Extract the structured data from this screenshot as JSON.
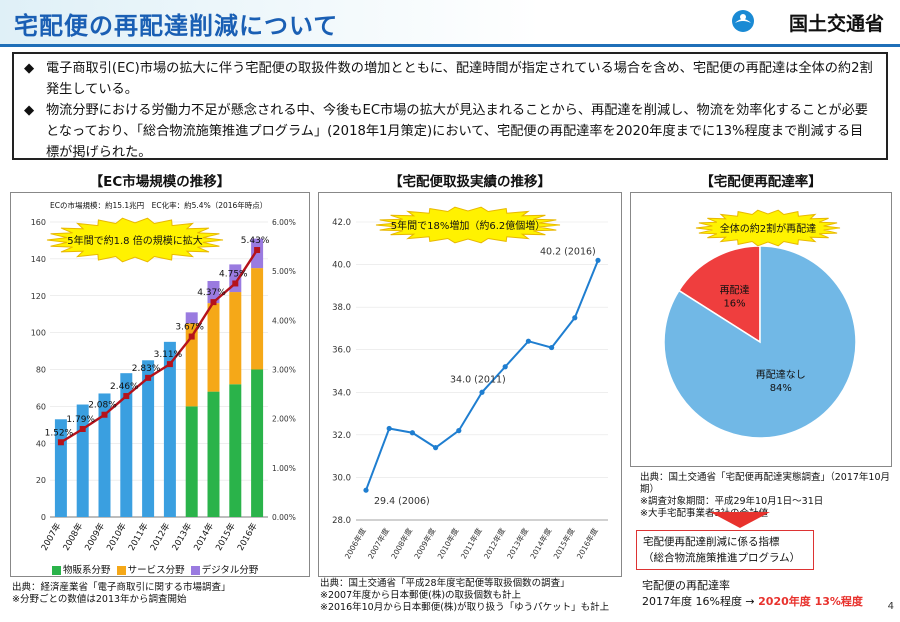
{
  "header": {
    "title": "宅配便の再配達削減について",
    "ministry": "国土交通省"
  },
  "summary": {
    "bullets": [
      "電子商取引(EC)市場の拡大に伴う宅配便の取扱件数の増加とともに、配達時間が指定されている場合を含め、宅配便の再配達は全体の約2割発生している。",
      "物流分野における労働力不足が懸念される中、今後もEC市場の拡大が見込まれることから、再配達を削減し、物流を効率化することが必要となっており、「総合物流施策推進プログラム」(2018年1月策定)において、宅配便の再配達率を2020年度までに13%程度まで削減する目標が掲げられた。"
    ],
    "bullet_mark": "◆"
  },
  "panels": {
    "ec": {
      "title": "【EC市場規模の推移】",
      "note": "ECの市場規模：約15.1兆円　EC化率：約5.4%（2016年時点）",
      "burst": "5年間で約1.8 倍の規模に拡大",
      "legend": [
        "物販系分野",
        "サービス分野",
        "デジタル分野"
      ],
      "source": [
        "出典：経済産業省「電子商取引に関する市場調査」",
        "※分野ごとの数値は2013年から調査開始"
      ]
    },
    "delivery": {
      "title": "【宅配便取扱実績の推移】",
      "burst": "5年間で18%増加（約6.2億個増）",
      "source": [
        "出典：国土交通省「平成28年度宅配便等取扱個数の調査」",
        "※2007年度から日本郵便(株)の取扱個数も計上",
        "※2016年10月から日本郵便(株)が取り扱う「ゆうパケット」も計上"
      ]
    },
    "redelivery": {
      "title": "【宅配便再配達率】",
      "burst": "全体の約2割が再配達",
      "source": [
        "出典：国土交通省「宅配便再配達実態調査」（2017年10月期）",
        "※調査対象期間：平成29年10月1日～31日",
        "※大手宅配事業者3社の合計値"
      ],
      "goal_title": [
        "宅配便再配達削減に係る指標",
        "（総合物流施策推進プログラム）"
      ],
      "goal_label": "宅配便の再配達率",
      "goal_from": "2017年度 16%程度 →",
      "goal_to": "2020年度 13%程度"
    }
  },
  "page_number": "4",
  "chart_data": [
    {
      "type": "bar",
      "title": "EC市場規模の推移",
      "categories": [
        "2007年",
        "2008年",
        "2009年",
        "2010年",
        "2011年",
        "2012年",
        "2013年",
        "2014年",
        "2015年",
        "2016年"
      ],
      "ylim": [
        0,
        160
      ],
      "yticks": [
        0,
        20,
        40,
        60,
        80,
        100,
        120,
        140,
        160
      ],
      "y2lim": [
        0,
        6
      ],
      "y2ticks": [
        "0.00%",
        "1.00%",
        "2.00%",
        "3.00%",
        "4.00%",
        "5.00%",
        "6.00%"
      ],
      "series": [
        {
          "name": "物販系分野",
          "values": [
            53,
            61,
            67,
            78,
            85,
            95,
            60,
            68,
            72,
            80
          ]
        },
        {
          "name": "サービス分野",
          "values": [
            0,
            0,
            0,
            0,
            0,
            0,
            45,
            48,
            50,
            55
          ]
        },
        {
          "name": "デジタル分野",
          "values": [
            0,
            0,
            0,
            0,
            0,
            0,
            6,
            12,
            15,
            16
          ]
        }
      ],
      "line": {
        "name": "EC化率",
        "values": [
          1.52,
          1.79,
          2.08,
          2.46,
          2.83,
          3.11,
          3.67,
          4.37,
          4.75,
          5.43
        ],
        "labels": [
          "1.52%",
          "1.79%",
          "2.08%",
          "2.46%",
          "2.83%",
          "3.11%",
          "3.67%",
          "4.37%",
          "4.75%",
          "5.43%"
        ]
      },
      "colors": {
        "物販系分野": "#2ab34a",
        "サービス分野": "#f5a818",
        "デジタル分野": "#9a7be0",
        "legacy": "#3a9fe0",
        "line": "#b5121b"
      }
    },
    {
      "type": "line",
      "title": "宅配便取扱実績の推移",
      "x": [
        "2006年度",
        "2007年度",
        "2008年度",
        "2009年度",
        "2010年度",
        "2011年度",
        "2012年度",
        "2013年度",
        "2014年度",
        "2015年度",
        "2016年度"
      ],
      "values": [
        29.4,
        32.3,
        32.1,
        31.4,
        32.2,
        34.0,
        35.2,
        36.4,
        36.1,
        37.5,
        40.2
      ],
      "annotations": [
        {
          "index": 0,
          "text": "29.4 (2006)"
        },
        {
          "index": 5,
          "text": "34.0 (2011)"
        },
        {
          "index": 10,
          "text": "40.2 (2016)"
        }
      ],
      "ylim": [
        28,
        42
      ],
      "yticks": [
        "28.0",
        "30.0",
        "32.0",
        "34.0",
        "36.0",
        "38.0",
        "40.0",
        "42.0"
      ],
      "color": "#1f7ed0"
    },
    {
      "type": "pie",
      "title": "宅配便再配達率",
      "slices": [
        {
          "label": "再配達",
          "value": 16,
          "text": "16%",
          "color": "#ef3e3e"
        },
        {
          "label": "再配達なし",
          "value": 84,
          "text": "84%",
          "color": "#71b8e6"
        }
      ]
    }
  ]
}
